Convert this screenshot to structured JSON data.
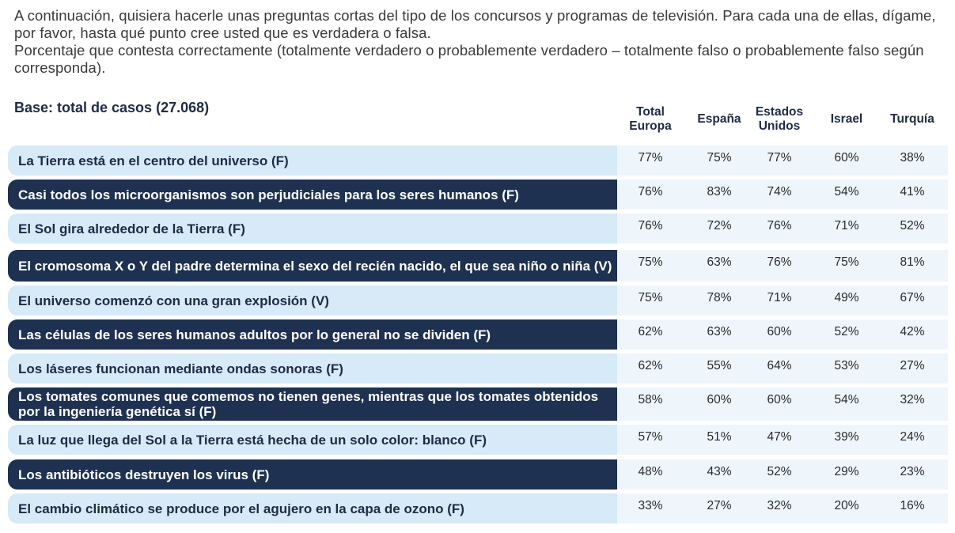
{
  "intro": {
    "line1": "A continuación, quisiera hacerle unas preguntas cortas del tipo de los concursos y programas de televisión. Para cada una de ellas, dígame, por favor, hasta qué punto cree usted que es verdadera o falsa.",
    "line2": "Porcentaje que contesta correctamente (totalmente verdadero o probablemente verdadero – totalmente falso o probablemente falso según corresponda)."
  },
  "base": "Base: total de casos (27.068)",
  "colors": {
    "dark_row": "#1f3150",
    "light_row": "#d6eaf8",
    "value_band": "#eef6fc"
  },
  "chart_data": {
    "type": "table",
    "columns": [
      "Total Europa",
      "España",
      "Estados Unidos",
      "Israel",
      "Turquía"
    ],
    "rows": [
      {
        "label": "La Tierra está en el centro del universo (F)",
        "style": "light",
        "values": [
          "77%",
          "75%",
          "77%",
          "60%",
          "38%"
        ]
      },
      {
        "label": "Casi todos los microorganismos son perjudiciales para los seres humanos (F)",
        "style": "dark",
        "values": [
          "76%",
          "83%",
          "74%",
          "54%",
          "41%"
        ]
      },
      {
        "label": "El Sol gira alrededor de la Tierra (F)",
        "style": "light",
        "values": [
          "76%",
          "72%",
          "76%",
          "71%",
          "52%"
        ]
      },
      {
        "label": "El cromosoma X o Y del padre determina el sexo del recién nacido, el que sea niño o niña (V)",
        "style": "dark",
        "values": [
          "75%",
          "63%",
          "76%",
          "75%",
          "81%"
        ]
      },
      {
        "label": "El universo comenzó con una gran explosión (V)",
        "style": "light",
        "values": [
          "75%",
          "78%",
          "71%",
          "49%",
          "67%"
        ]
      },
      {
        "label": "Las células de los seres humanos adultos por lo general no se dividen (F)",
        "style": "dark",
        "values": [
          "62%",
          "63%",
          "60%",
          "52%",
          "42%"
        ]
      },
      {
        "label": "Los láseres funcionan mediante ondas sonoras (F)",
        "style": "light",
        "values": [
          "62%",
          "55%",
          "64%",
          "53%",
          "27%"
        ]
      },
      {
        "label": "Los tomates comunes que comemos no tienen genes, mientras que los tomates obtenidos por la ingeniería genética sí (F)",
        "style": "dark",
        "values": [
          "58%",
          "60%",
          "60%",
          "54%",
          "32%"
        ]
      },
      {
        "label": "La luz que llega del Sol a la Tierra está hecha de un solo color: blanco (F)",
        "style": "light",
        "values": [
          "57%",
          "51%",
          "47%",
          "39%",
          "24%"
        ]
      },
      {
        "label": "Los antibióticos destruyen los virus (F)",
        "style": "dark",
        "values": [
          "48%",
          "43%",
          "52%",
          "29%",
          "23%"
        ]
      },
      {
        "label": "El cambio climático se produce por el agujero en la capa de ozono (F)",
        "style": "light",
        "values": [
          "33%",
          "27%",
          "32%",
          "20%",
          "16%"
        ]
      }
    ]
  }
}
